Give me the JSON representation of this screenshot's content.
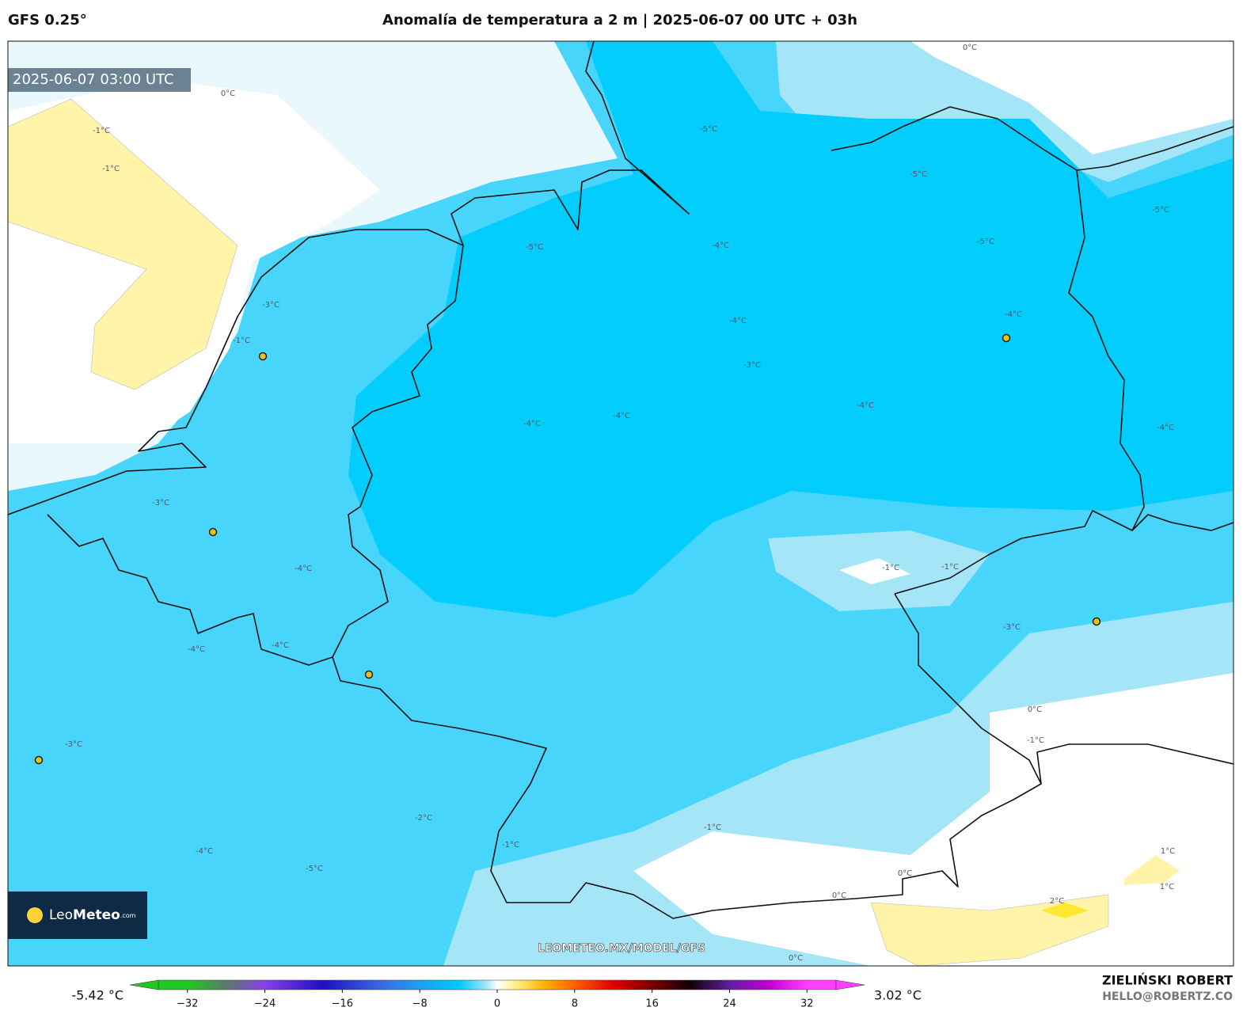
{
  "header": {
    "model": "GFS 0.25°",
    "title": "Anomalía de temperatura a 2 m | 2025-06-07 00 UTC + 03h"
  },
  "timestamp": "2025-06-07 03:00 UTC",
  "logo": {
    "name_light": "Leo",
    "name_bold": "Meteo",
    "suffix": ".com"
  },
  "watermark": "LEOMETEO.MX/MODEL/GFS",
  "contour_labels": [
    "0°C",
    "-1°C",
    "-1°C",
    "-3°C",
    "-1°C",
    "-3°C",
    "-4°C",
    "-4°C",
    "-4°C",
    "-3°C",
    "-5°C",
    "-4°C",
    "-4°C",
    "-4°C",
    "-4°C",
    "-3°C",
    "-4°C",
    "-5°C",
    "-5°C",
    "-5°C",
    "-4°C",
    "-5°C",
    "-4°C",
    "-1°C",
    "-1°C",
    "-3°C",
    "0°C",
    "-1°C",
    "-2°C",
    "-1°C",
    "-1°C",
    "0°C",
    "0°C",
    "-4°C",
    "-5°C",
    "1°C",
    "1°C",
    "2°C",
    "0°C",
    "0°C"
  ],
  "colorbar": {
    "min_label": "-5.42 °C",
    "max_label": "3.02 °C",
    "lim": [
      -35,
      35
    ],
    "ticks": [
      {
        "value": -32,
        "label": "−32"
      },
      {
        "value": -24,
        "label": "−24"
      },
      {
        "value": -16,
        "label": "−16"
      },
      {
        "value": -8,
        "label": "−8"
      },
      0,
      8,
      16,
      24,
      32
    ],
    "stops": [
      {
        "value": -32,
        "color": "#22c822"
      },
      {
        "value": -28,
        "color": "#5a7a6a"
      },
      {
        "value": -24,
        "color": "#8a40e8"
      },
      {
        "value": -18,
        "color": "#2010c0"
      },
      {
        "value": -12,
        "color": "#3a6ae0"
      },
      {
        "value": -8,
        "color": "#1ea0f0"
      },
      {
        "value": -4,
        "color": "#00c8ff"
      },
      {
        "value": -1,
        "color": "#a8e8fa"
      },
      {
        "value": 0,
        "color": "#ffffff"
      },
      {
        "value": 2,
        "color": "#fff080"
      },
      {
        "value": 5,
        "color": "#ffb000"
      },
      {
        "value": 8,
        "color": "#ff6000"
      },
      {
        "value": 12,
        "color": "#e00000"
      },
      {
        "value": 16,
        "color": "#7a0000"
      },
      {
        "value": 20,
        "color": "#100008"
      },
      {
        "value": 24,
        "color": "#6020a0"
      },
      {
        "value": 28,
        "color": "#c000d0"
      },
      {
        "value": 32,
        "color": "#ff40ff"
      }
    ]
  },
  "author": {
    "name": "ZIELIŃSKI ROBERT",
    "email": "HELLO@ROBERTZ.CO"
  }
}
